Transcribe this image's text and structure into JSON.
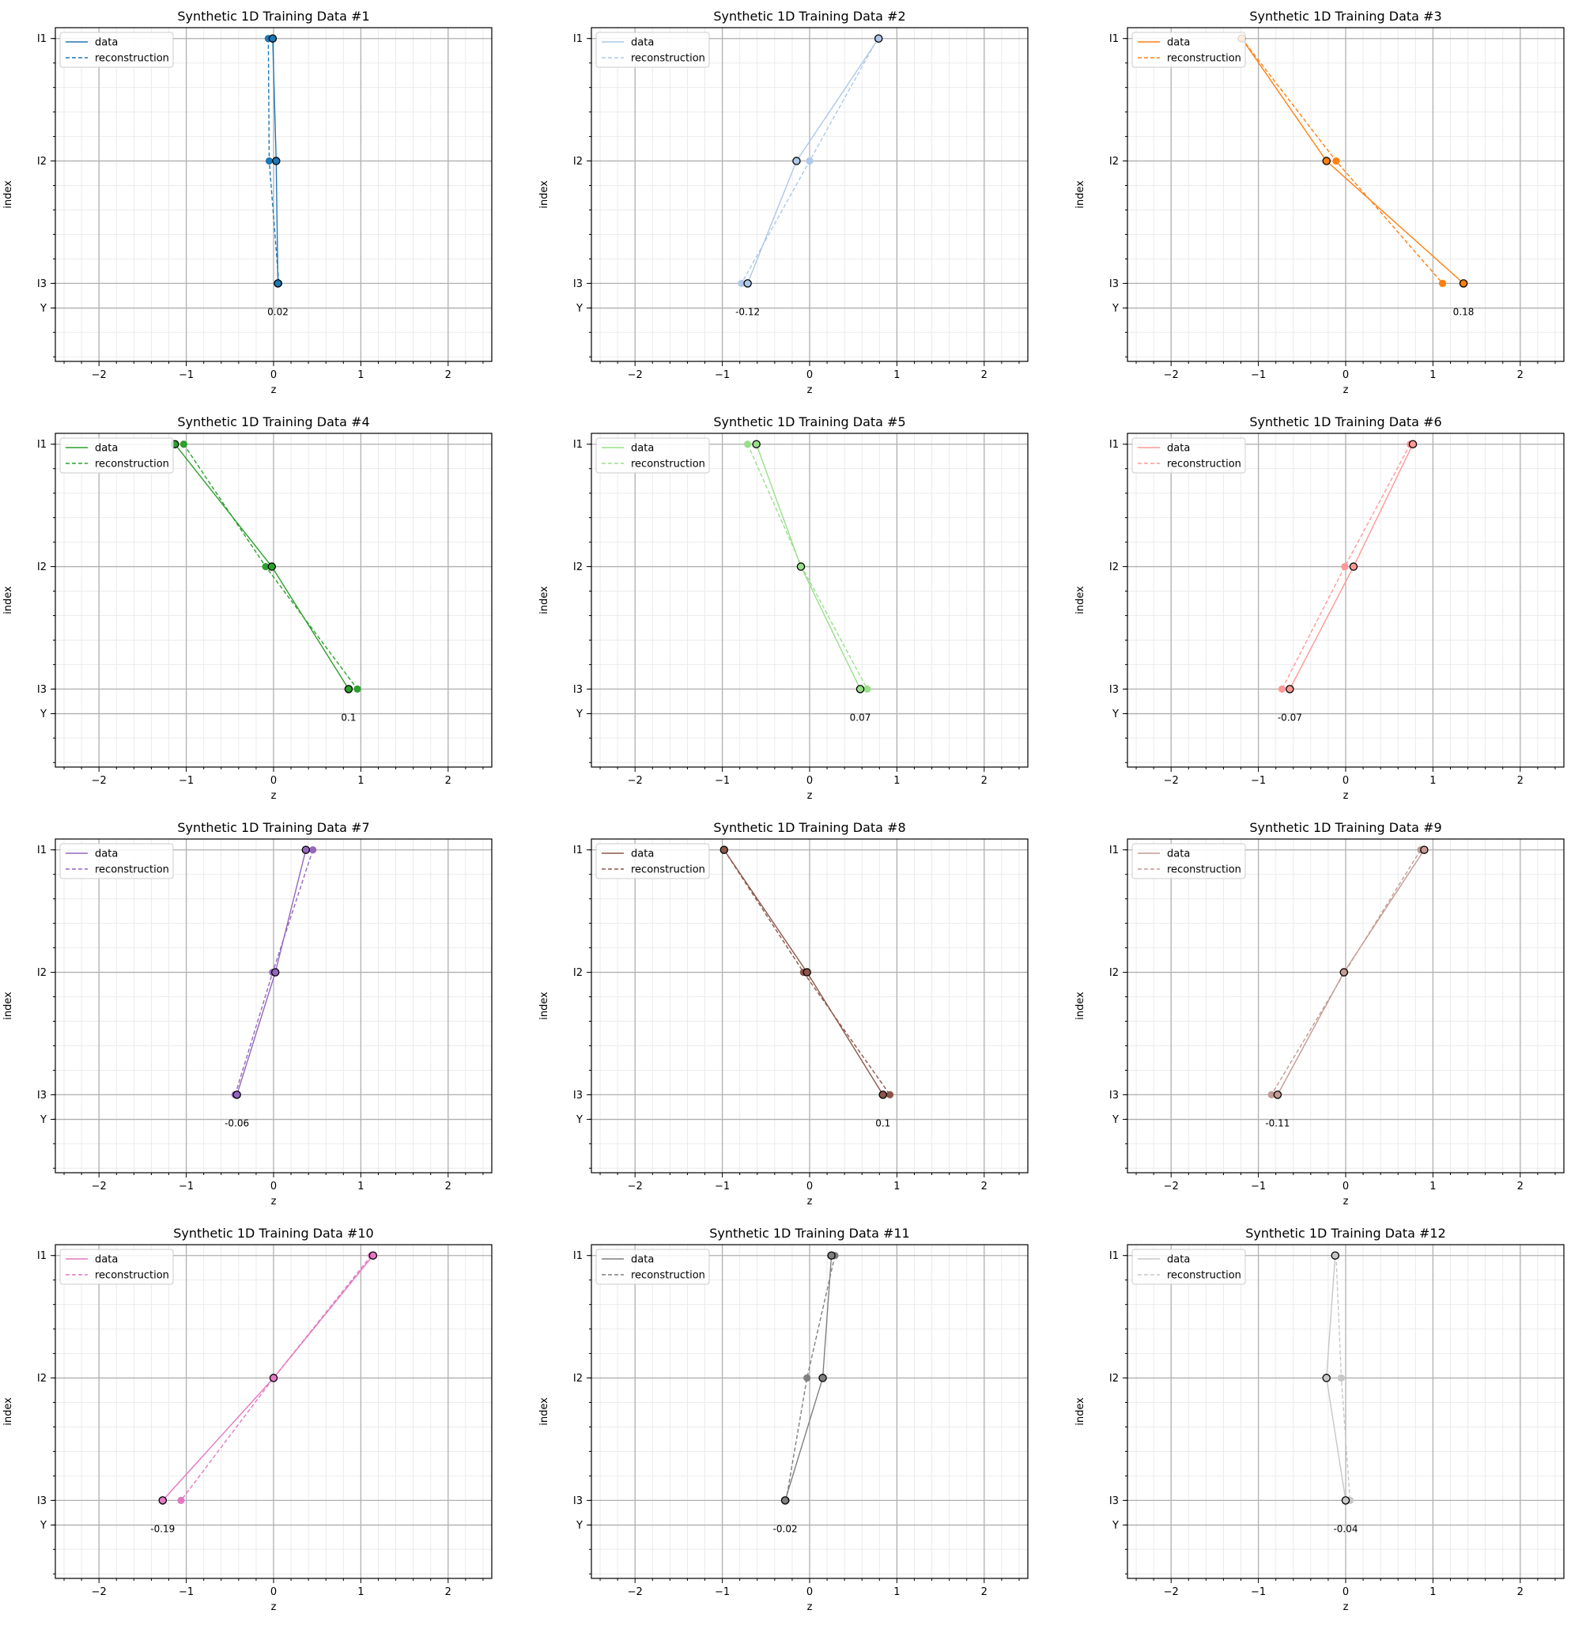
{
  "colors": {
    "palette": [
      "#1f77b4",
      "#aec7e8",
      "#ff7f0e",
      "#2ca02c",
      "#98df8a",
      "#ff9896",
      "#9467bd",
      "#8c564b",
      "#c49c94",
      "#e377c2",
      "#7f7f7f",
      "#c7c7c7"
    ],
    "marker_edge": "#000000",
    "grid_major": "#b0b0b0",
    "grid_minor": "#ebebeb"
  },
  "chart_data": [
    {
      "type": "line",
      "title": "Synthetic 1D Training Data #1",
      "xlabel": "z",
      "ylabel": "index",
      "yticks": [
        "I1",
        "I2",
        "I3",
        "Y"
      ],
      "xlim": [
        -2.5,
        2.5
      ],
      "xticks": [
        -2,
        -1,
        0,
        1,
        2
      ],
      "grid": true,
      "legend": "upper left",
      "categories": [
        "I1",
        "I2",
        "I3"
      ],
      "series": [
        {
          "name": "data",
          "style": "solid",
          "values": [
            -0.01,
            0.03,
            0.05
          ]
        },
        {
          "name": "reconstruction",
          "style": "dashed",
          "values": [
            -0.06,
            -0.05,
            0.06
          ]
        }
      ],
      "y_value": 0.02
    },
    {
      "type": "line",
      "title": "Synthetic 1D Training Data #2",
      "xlabel": "z",
      "ylabel": "index",
      "yticks": [
        "I1",
        "I2",
        "I3",
        "Y"
      ],
      "xlim": [
        -2.5,
        2.5
      ],
      "xticks": [
        -2,
        -1,
        0,
        1,
        2
      ],
      "grid": true,
      "legend": "upper left",
      "categories": [
        "I1",
        "I2",
        "I3"
      ],
      "series": [
        {
          "name": "data",
          "style": "solid",
          "values": [
            0.79,
            -0.15,
            -0.71
          ]
        },
        {
          "name": "reconstruction",
          "style": "dashed",
          "values": [
            0.78,
            0.0,
            -0.78
          ]
        }
      ],
      "y_value": -0.12
    },
    {
      "type": "line",
      "title": "Synthetic 1D Training Data #3",
      "xlabel": "z",
      "ylabel": "index",
      "yticks": [
        "I1",
        "I2",
        "I3",
        "Y"
      ],
      "xlim": [
        -2.5,
        2.5
      ],
      "xticks": [
        -2,
        -1,
        0,
        1,
        2
      ],
      "grid": true,
      "legend": "upper left",
      "categories": [
        "I1",
        "I2",
        "I3"
      ],
      "series": [
        {
          "name": "data",
          "style": "solid",
          "values": [
            -1.19,
            -0.22,
            1.35
          ]
        },
        {
          "name": "reconstruction",
          "style": "dashed",
          "values": [
            -1.19,
            -0.11,
            1.11
          ]
        }
      ],
      "y_value": 0.18
    },
    {
      "type": "line",
      "title": "Synthetic 1D Training Data #4",
      "xlabel": "z",
      "ylabel": "index",
      "yticks": [
        "I1",
        "I2",
        "I3",
        "Y"
      ],
      "xlim": [
        -2.5,
        2.5
      ],
      "xticks": [
        -2,
        -1,
        0,
        1,
        2
      ],
      "grid": true,
      "legend": "upper left",
      "categories": [
        "I1",
        "I2",
        "I3"
      ],
      "series": [
        {
          "name": "data",
          "style": "solid",
          "values": [
            -1.13,
            -0.02,
            0.86
          ]
        },
        {
          "name": "reconstruction",
          "style": "dashed",
          "values": [
            -1.03,
            -0.09,
            0.96
          ]
        }
      ],
      "y_value": 0.1
    },
    {
      "type": "line",
      "title": "Synthetic 1D Training Data #5",
      "xlabel": "z",
      "ylabel": "index",
      "yticks": [
        "I1",
        "I2",
        "I3",
        "Y"
      ],
      "xlim": [
        -2.5,
        2.5
      ],
      "xticks": [
        -2,
        -1,
        0,
        1,
        2
      ],
      "grid": true,
      "legend": "upper left",
      "categories": [
        "I1",
        "I2",
        "I3"
      ],
      "series": [
        {
          "name": "data",
          "style": "solid",
          "values": [
            -0.61,
            -0.1,
            0.58
          ]
        },
        {
          "name": "reconstruction",
          "style": "dashed",
          "values": [
            -0.71,
            -0.09,
            0.66
          ]
        }
      ],
      "y_value": 0.07
    },
    {
      "type": "line",
      "title": "Synthetic 1D Training Data #6",
      "xlabel": "z",
      "ylabel": "index",
      "yticks": [
        "I1",
        "I2",
        "I3",
        "Y"
      ],
      "xlim": [
        -2.5,
        2.5
      ],
      "xticks": [
        -2,
        -1,
        0,
        1,
        2
      ],
      "grid": true,
      "legend": "upper left",
      "categories": [
        "I1",
        "I2",
        "I3"
      ],
      "series": [
        {
          "name": "data",
          "style": "solid",
          "values": [
            0.77,
            0.09,
            -0.64
          ]
        },
        {
          "name": "reconstruction",
          "style": "dashed",
          "values": [
            0.74,
            -0.01,
            -0.73
          ]
        }
      ],
      "y_value": -0.07
    },
    {
      "type": "line",
      "title": "Synthetic 1D Training Data #7",
      "xlabel": "z",
      "ylabel": "index",
      "yticks": [
        "I1",
        "I2",
        "I3",
        "Y"
      ],
      "xlim": [
        -2.5,
        2.5
      ],
      "xticks": [
        -2,
        -1,
        0,
        1,
        2
      ],
      "grid": true,
      "legend": "upper left",
      "categories": [
        "I1",
        "I2",
        "I3"
      ],
      "series": [
        {
          "name": "data",
          "style": "solid",
          "values": [
            0.37,
            0.02,
            -0.42
          ]
        },
        {
          "name": "reconstruction",
          "style": "dashed",
          "values": [
            0.45,
            -0.01,
            -0.44
          ]
        }
      ],
      "y_value": -0.06
    },
    {
      "type": "line",
      "title": "Synthetic 1D Training Data #8",
      "xlabel": "z",
      "ylabel": "index",
      "yticks": [
        "I1",
        "I2",
        "I3",
        "Y"
      ],
      "xlim": [
        -2.5,
        2.5
      ],
      "xticks": [
        -2,
        -1,
        0,
        1,
        2
      ],
      "grid": true,
      "legend": "upper left",
      "categories": [
        "I1",
        "I2",
        "I3"
      ],
      "series": [
        {
          "name": "data",
          "style": "solid",
          "values": [
            -0.98,
            -0.03,
            0.84
          ]
        },
        {
          "name": "reconstruction",
          "style": "dashed",
          "values": [
            -0.98,
            -0.07,
            0.92
          ]
        }
      ],
      "y_value": 0.1
    },
    {
      "type": "line",
      "title": "Synthetic 1D Training Data #9",
      "xlabel": "z",
      "ylabel": "index",
      "yticks": [
        "I1",
        "I2",
        "I3",
        "Y"
      ],
      "xlim": [
        -2.5,
        2.5
      ],
      "xticks": [
        -2,
        -1,
        0,
        1,
        2
      ],
      "grid": true,
      "legend": "upper left",
      "categories": [
        "I1",
        "I2",
        "I3"
      ],
      "series": [
        {
          "name": "data",
          "style": "solid",
          "values": [
            0.9,
            -0.02,
            -0.78
          ]
        },
        {
          "name": "reconstruction",
          "style": "dashed",
          "values": [
            0.86,
            -0.01,
            -0.85
          ]
        }
      ],
      "y_value": -0.11
    },
    {
      "type": "line",
      "title": "Synthetic 1D Training Data #10",
      "xlabel": "z",
      "ylabel": "index",
      "yticks": [
        "I1",
        "I2",
        "I3",
        "Y"
      ],
      "xlim": [
        -2.5,
        2.5
      ],
      "xticks": [
        -2,
        -1,
        0,
        1,
        2
      ],
      "grid": true,
      "legend": "upper left",
      "categories": [
        "I1",
        "I2",
        "I3"
      ],
      "series": [
        {
          "name": "data",
          "style": "solid",
          "values": [
            1.14,
            0.0,
            -1.27
          ]
        },
        {
          "name": "reconstruction",
          "style": "dashed",
          "values": [
            1.12,
            0.0,
            -1.06
          ]
        }
      ],
      "y_value": -0.19
    },
    {
      "type": "line",
      "title": "Synthetic 1D Training Data #11",
      "xlabel": "z",
      "ylabel": "index",
      "yticks": [
        "I1",
        "I2",
        "I3",
        "Y"
      ],
      "xlim": [
        -2.5,
        2.5
      ],
      "xticks": [
        -2,
        -1,
        0,
        1,
        2
      ],
      "grid": true,
      "legend": "upper left",
      "categories": [
        "I1",
        "I2",
        "I3"
      ],
      "series": [
        {
          "name": "data",
          "style": "solid",
          "values": [
            0.25,
            0.15,
            -0.28
          ]
        },
        {
          "name": "reconstruction",
          "style": "dashed",
          "values": [
            0.29,
            -0.03,
            -0.27
          ]
        }
      ],
      "y_value": -0.02
    },
    {
      "type": "line",
      "title": "Synthetic 1D Training Data #12",
      "xlabel": "z",
      "ylabel": "index",
      "yticks": [
        "I1",
        "I2",
        "I3",
        "Y"
      ],
      "xlim": [
        -2.5,
        2.5
      ],
      "xticks": [
        -2,
        -1,
        0,
        1,
        2
      ],
      "grid": true,
      "legend": "upper left",
      "categories": [
        "I1",
        "I2",
        "I3"
      ],
      "series": [
        {
          "name": "data",
          "style": "solid",
          "values": [
            -0.12,
            -0.22,
            0.0
          ]
        },
        {
          "name": "reconstruction",
          "style": "dashed",
          "values": [
            -0.11,
            -0.05,
            0.05
          ]
        }
      ],
      "y_value": -0.04
    }
  ]
}
